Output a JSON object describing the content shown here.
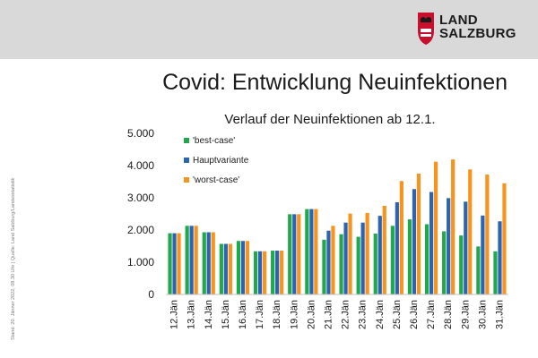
{
  "brand": {
    "line1": "LAND",
    "line2": "SALZBURG"
  },
  "slide_title": "Covid: Entwicklung Neuinfektionen",
  "side_note": "Stand: 20. Jänner 2022, 08.30 Uhr | Quelle: Land Salzburg/Landesstatistik",
  "colors": {
    "best": "#22a84a",
    "haupt": "#2b63b5",
    "worst": "#f7941d",
    "header": "#d9d9d9",
    "brand_red": "#c8102e"
  },
  "chart_data": {
    "type": "bar",
    "title": "Verlauf der Neuinfektionen ab 12.1.",
    "xlabel": "",
    "ylabel": "",
    "ylim": [
      0,
      5000
    ],
    "yticks": [
      0,
      1000,
      2000,
      3000,
      4000,
      5000
    ],
    "ytick_labels": [
      "0",
      "1.000",
      "2.000",
      "3.000",
      "4.000",
      "5.000"
    ],
    "legend_position": "top-left",
    "categories": [
      "12.Jän",
      "13.Jän",
      "14.Jän",
      "15.Jän",
      "16.Jän",
      "17.Jän",
      "18.Jän",
      "19.Jän",
      "20.Jän",
      "21.Jän",
      "22.Jän",
      "23.Jän",
      "24.Jän",
      "25.Jän",
      "26.Jän",
      "27.Jän",
      "28.Jän",
      "29.Jän",
      "30.Jän",
      "31.Jän"
    ],
    "series": [
      {
        "name": "'best-case'",
        "color": "#22a84a",
        "values": [
          1900,
          2130,
          1930,
          1570,
          1660,
          1340,
          1360,
          2490,
          2650,
          1700,
          1870,
          1790,
          1890,
          2130,
          2330,
          2180,
          1960,
          1830,
          1490,
          1340
        ]
      },
      {
        "name": "Hauptvariante",
        "color": "#2b63b5",
        "values": [
          1900,
          2130,
          1930,
          1570,
          1660,
          1340,
          1360,
          2490,
          2650,
          1980,
          2230,
          2230,
          2440,
          2860,
          3270,
          3180,
          2990,
          2880,
          2450,
          2270
        ]
      },
      {
        "name": "'worst-case'",
        "color": "#f7941d",
        "values": [
          1900,
          2130,
          1930,
          1570,
          1660,
          1340,
          1360,
          2490,
          2650,
          2130,
          2510,
          2530,
          2750,
          3520,
          3750,
          4120,
          4190,
          3880,
          3720,
          3450
        ]
      }
    ]
  }
}
